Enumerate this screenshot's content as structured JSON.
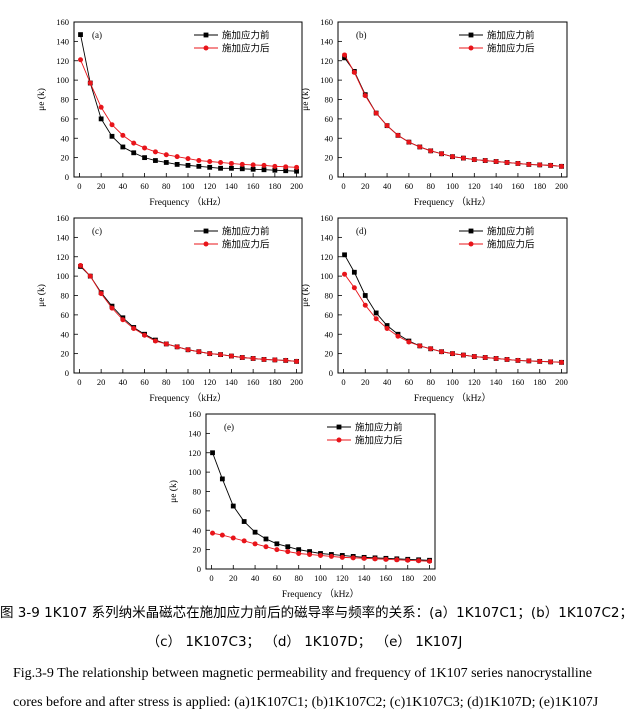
{
  "figure": {
    "caption_cn_line1": "图 3-9 1K107 系列纳米晶磁芯在施加应力前后的磁导率与频率的关系：(a）1K107C1；(b）1K107C2；",
    "caption_cn_line2": "（c） 1K107C3； （d） 1K107D； （e） 1K107J",
    "caption_en_line1": "Fig.3-9 The relationship between magnetic permeability and frequency of 1K107 series nanocrystalline",
    "caption_en_line2": "cores before and after stress is applied: (a)1K107C1; (b)1K107C2; (c)1K107C3; (d)1K107D; (e)1K107J"
  },
  "chart_data": [
    {
      "panel": "(a)",
      "type": "line",
      "xlabel": "Frequency （kHz）",
      "ylabel": "μe (k)",
      "xlim": [
        -5,
        205
      ],
      "ylim": [
        0,
        160
      ],
      "xticks": [
        0,
        20,
        40,
        60,
        80,
        100,
        120,
        140,
        160,
        180,
        200
      ],
      "yticks": [
        0,
        20,
        40,
        60,
        80,
        100,
        120,
        140,
        160
      ],
      "legend_position": "top-right",
      "x": [
        1,
        10,
        20,
        30,
        40,
        50,
        60,
        70,
        80,
        90,
        100,
        110,
        120,
        130,
        140,
        150,
        160,
        170,
        180,
        190,
        200
      ],
      "series": [
        {
          "name": "施加应力前",
          "color": "#000000",
          "marker": "square",
          "values": [
            147,
            97,
            60,
            42,
            31,
            25,
            20,
            17,
            15,
            13,
            12,
            11,
            10,
            9,
            9,
            8.5,
            8,
            7.5,
            7,
            6.5,
            6
          ]
        },
        {
          "name": "施加应力后",
          "color": "#e8141a",
          "marker": "circle",
          "values": [
            121,
            97,
            72,
            54,
            43,
            35,
            30,
            26,
            23,
            21,
            19,
            17,
            16,
            15,
            14,
            13,
            12.5,
            12,
            11,
            10.5,
            10
          ]
        }
      ]
    },
    {
      "panel": "(b)",
      "type": "line",
      "xlabel": "Frequency （kHz）",
      "ylabel": "μe (k)",
      "xlim": [
        -5,
        205
      ],
      "ylim": [
        0,
        160
      ],
      "xticks": [
        0,
        20,
        40,
        60,
        80,
        100,
        120,
        140,
        160,
        180,
        200
      ],
      "yticks": [
        0,
        20,
        40,
        60,
        80,
        100,
        120,
        140,
        160
      ],
      "legend_position": "top-right",
      "x": [
        1,
        10,
        20,
        30,
        40,
        50,
        60,
        70,
        80,
        90,
        100,
        110,
        120,
        130,
        140,
        150,
        160,
        170,
        180,
        190,
        200
      ],
      "series": [
        {
          "name": "施加应力前",
          "color": "#000000",
          "marker": "square",
          "values": [
            123,
            109,
            85,
            66,
            53,
            43,
            36,
            31,
            27,
            24,
            21,
            19.5,
            18,
            17,
            16,
            15,
            14,
            13,
            12.5,
            12,
            11
          ]
        },
        {
          "name": "施加应力后",
          "color": "#e8141a",
          "marker": "circle",
          "values": [
            126,
            108,
            84,
            66,
            53,
            43,
            36,
            31,
            27,
            24,
            21,
            19.5,
            18,
            17,
            16,
            15,
            14,
            13,
            12.5,
            12,
            11
          ]
        }
      ]
    },
    {
      "panel": "(c)",
      "type": "line",
      "xlabel": "Frequency （kHz）",
      "ylabel": "μe (k)",
      "xlim": [
        -5,
        205
      ],
      "ylim": [
        0,
        160
      ],
      "xticks": [
        0,
        20,
        40,
        60,
        80,
        100,
        120,
        140,
        160,
        180,
        200
      ],
      "yticks": [
        0,
        20,
        40,
        60,
        80,
        100,
        120,
        140,
        160
      ],
      "legend_position": "top-right",
      "x": [
        1,
        10,
        20,
        30,
        40,
        50,
        60,
        70,
        80,
        90,
        100,
        110,
        120,
        130,
        140,
        150,
        160,
        170,
        180,
        190,
        200
      ],
      "series": [
        {
          "name": "施加应力前",
          "color": "#000000",
          "marker": "square",
          "values": [
            110,
            100,
            83,
            69,
            57,
            47,
            40,
            34,
            30,
            27,
            24,
            22,
            20,
            19,
            17.5,
            16,
            15,
            14,
            13.5,
            13,
            12
          ]
        },
        {
          "name": "施加应力后",
          "color": "#e8141a",
          "marker": "circle",
          "values": [
            111,
            100,
            82,
            67,
            55,
            46,
            39,
            33,
            30,
            27,
            24,
            22,
            20,
            19,
            17.5,
            16,
            15,
            14,
            13.5,
            13,
            12
          ]
        }
      ]
    },
    {
      "panel": "(d)",
      "type": "line",
      "xlabel": "Frequency （kHz）",
      "ylabel": "μe (k)",
      "xlim": [
        -5,
        205
      ],
      "ylim": [
        0,
        160
      ],
      "xticks": [
        0,
        20,
        40,
        60,
        80,
        100,
        120,
        140,
        160,
        180,
        200
      ],
      "yticks": [
        0,
        20,
        40,
        60,
        80,
        100,
        120,
        140,
        160
      ],
      "legend_position": "top-right",
      "x": [
        1,
        10,
        20,
        30,
        40,
        50,
        60,
        70,
        80,
        90,
        100,
        110,
        120,
        130,
        140,
        150,
        160,
        170,
        180,
        190,
        200
      ],
      "series": [
        {
          "name": "施加应力前",
          "color": "#000000",
          "marker": "square",
          "values": [
            122,
            104,
            80,
            62,
            49,
            40,
            33,
            28,
            25,
            22,
            20,
            18.5,
            17,
            16,
            15,
            14,
            13,
            12.5,
            12,
            11.5,
            11
          ]
        },
        {
          "name": "施加应力后",
          "color": "#e8141a",
          "marker": "circle",
          "values": [
            102,
            88,
            70,
            56,
            46,
            38,
            32,
            28,
            25,
            22,
            20,
            18.5,
            17,
            16,
            15,
            14,
            13,
            12.5,
            12,
            11.5,
            11
          ]
        }
      ]
    },
    {
      "panel": "(e)",
      "type": "line",
      "xlabel": "Frequency （kHz）",
      "ylabel": "μe (k)",
      "xlim": [
        -5,
        205
      ],
      "ylim": [
        0,
        160
      ],
      "xticks": [
        0,
        20,
        40,
        60,
        80,
        100,
        120,
        140,
        160,
        180,
        200
      ],
      "yticks": [
        0,
        20,
        40,
        60,
        80,
        100,
        120,
        140,
        160
      ],
      "legend_position": "top-right",
      "x": [
        1,
        10,
        20,
        30,
        40,
        50,
        60,
        70,
        80,
        90,
        100,
        110,
        120,
        130,
        140,
        150,
        160,
        170,
        180,
        190,
        200
      ],
      "series": [
        {
          "name": "施加应力前",
          "color": "#000000",
          "marker": "square",
          "values": [
            120,
            93,
            65,
            49,
            38,
            31,
            26,
            23,
            20,
            18,
            16,
            15,
            14,
            13,
            12,
            11.5,
            11,
            10.5,
            10,
            9.5,
            9
          ]
        },
        {
          "name": "施加应力后",
          "color": "#e8141a",
          "marker": "circle",
          "values": [
            37,
            35,
            32,
            29,
            26,
            23,
            20,
            18,
            16,
            15,
            14,
            13,
            12,
            11.5,
            11,
            10.5,
            10,
            9.5,
            9,
            8.5,
            8
          ]
        }
      ]
    }
  ]
}
